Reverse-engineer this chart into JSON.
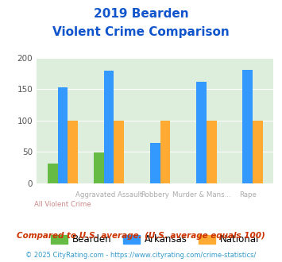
{
  "title_line1": "2019 Bearden",
  "title_line2": "Violent Crime Comparison",
  "categories": [
    "All Violent Crime",
    "Aggravated Assault",
    "Robbery",
    "Murder & Mans...",
    "Rape"
  ],
  "bearden": [
    32,
    49,
    0,
    0,
    0
  ],
  "arkansas": [
    153,
    179,
    65,
    161,
    181
  ],
  "national": [
    100,
    100,
    100,
    100,
    100
  ],
  "color_bearden": "#66bb44",
  "color_arkansas": "#3399ff",
  "color_national": "#ffaa33",
  "ylim": [
    0,
    200
  ],
  "yticks": [
    0,
    50,
    100,
    150,
    200
  ],
  "footnote1": "Compared to U.S. average. (U.S. average equals 100)",
  "footnote2": "© 2025 CityRating.com - https://www.cityrating.com/crime-statistics/",
  "title_color": "#1155cc",
  "cat_label_color_top": "#aaaaaa",
  "cat_label_color_bot": "#cc8888",
  "footnote1_color": "#cc3300",
  "footnote2_color": "#3399cc",
  "bg_color": "#ddeedd",
  "fig_bg": "#ffffff",
  "tick_top": [
    "",
    "Aggravated Assault",
    "Robbery",
    "Murder & Mans...",
    "Rape"
  ],
  "tick_bot": [
    "All Violent Crime",
    "",
    "",
    "",
    ""
  ]
}
